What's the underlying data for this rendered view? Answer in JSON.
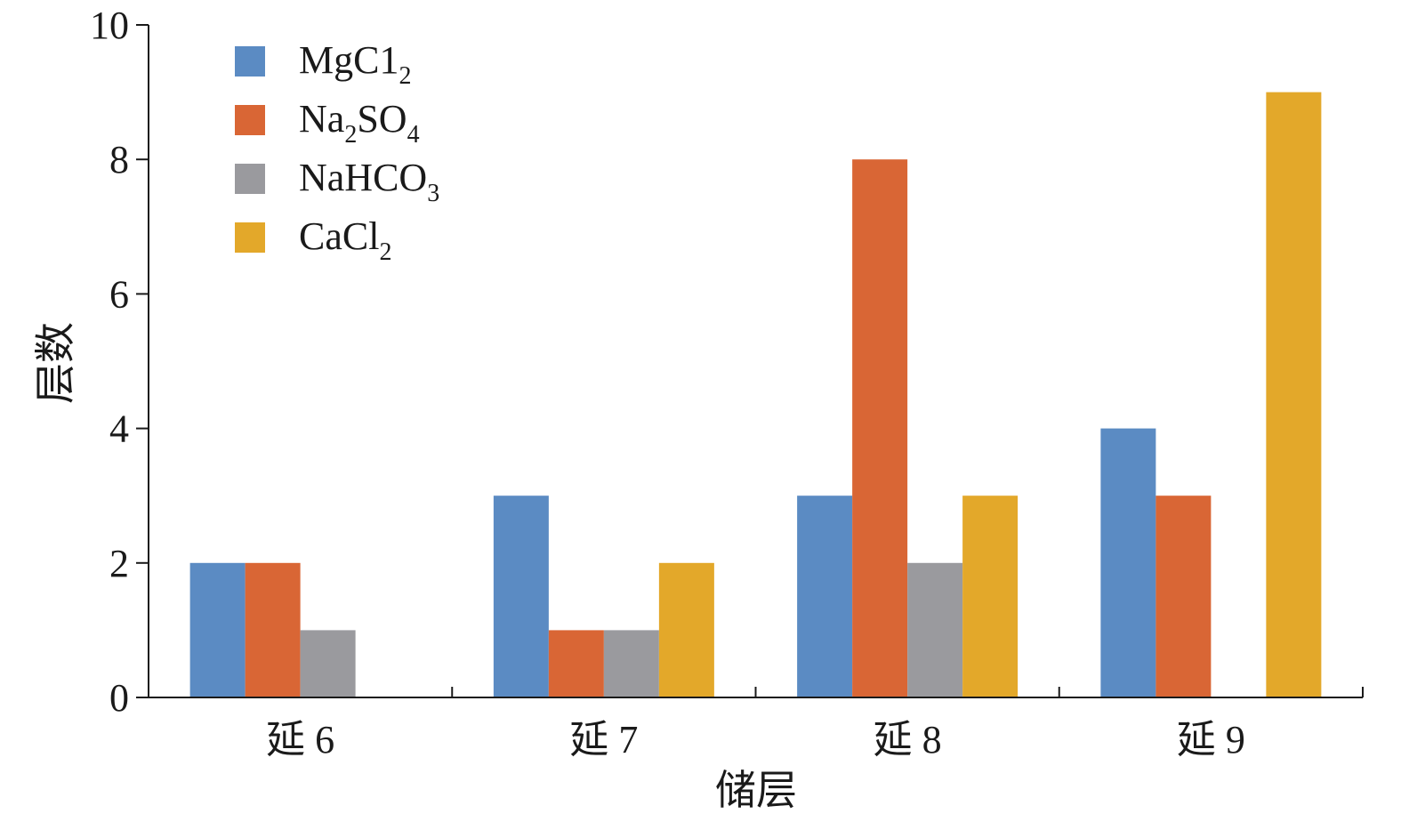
{
  "chart_data": {
    "type": "bar",
    "title": "",
    "xlabel": "储层",
    "ylabel": "层数",
    "categories": [
      "延 6",
      "延 7",
      "延 8",
      "延 9"
    ],
    "ylim": [
      0,
      10
    ],
    "yticks": [
      0,
      2,
      4,
      6,
      8,
      10
    ],
    "grid": false,
    "legend_position": "top-left",
    "series": [
      {
        "name": "MgC1₂",
        "legend_base": "MgC1",
        "legend_sub": "2",
        "legend_tail": "",
        "color": "#5b8bc3",
        "values": [
          2,
          3,
          3,
          4
        ]
      },
      {
        "name": "Na₂SO₄",
        "legend_base": "Na",
        "legend_sub": "2",
        "legend_tail": "SO",
        "legend_sub2": "4",
        "color": "#d96635",
        "values": [
          2,
          1,
          8,
          3
        ]
      },
      {
        "name": "NaHCO₃",
        "legend_base": "NaHCO",
        "legend_sub": "3",
        "legend_tail": "",
        "color": "#9a9a9e",
        "values": [
          1,
          1,
          2,
          0
        ]
      },
      {
        "name": "CaCl₂",
        "legend_base": "CaCl",
        "legend_sub": "2",
        "legend_tail": "",
        "color": "#e3a82a",
        "values": [
          0,
          2,
          3,
          9
        ]
      }
    ]
  }
}
